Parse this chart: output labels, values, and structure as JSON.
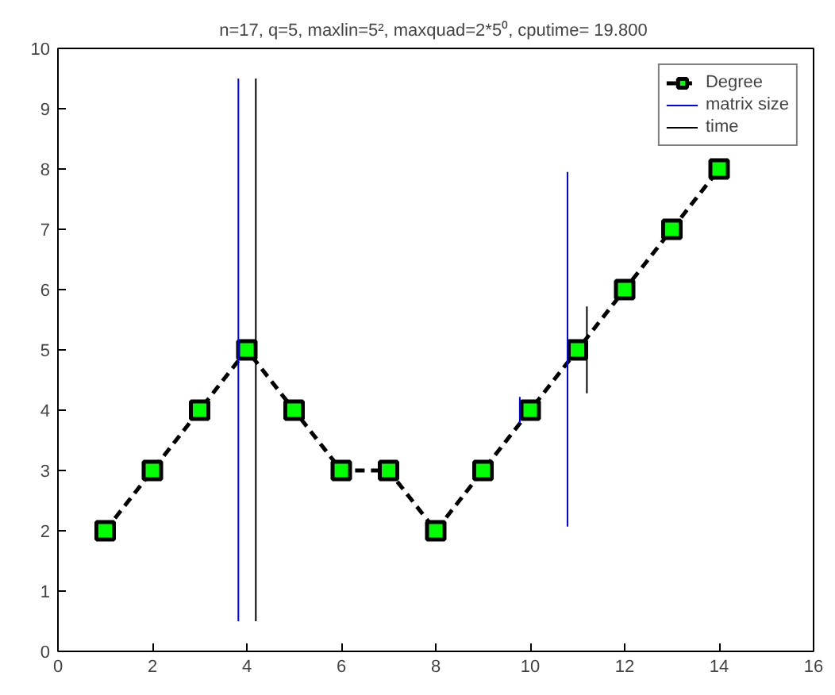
{
  "chart_data": {
    "type": "line",
    "title": "n=17, q=5, maxlin=5², maxquad=2*5⁰, cputime=  19.800",
    "x": [
      1,
      2,
      3,
      4,
      5,
      6,
      7,
      8,
      9,
      10,
      11,
      12,
      13,
      14
    ],
    "series": [
      {
        "name": "Degree",
        "color": "#000000",
        "values": [
          2,
          3,
          4,
          5,
          4,
          3,
          3,
          2,
          3,
          4,
          5,
          6,
          7,
          8
        ],
        "marker": "square",
        "line_style": "dashed"
      },
      {
        "name": "matrix size",
        "color": "#0000ff",
        "x": [
          3.82,
          3.82,
          null,
          9.78,
          9.78,
          null,
          10.79,
          10.79
        ],
        "values": [
          0.5,
          9.5,
          null,
          3.78,
          4.22,
          null,
          2.07,
          7.95
        ],
        "marker": "none",
        "line_style": "solid"
      },
      {
        "name": "time",
        "color": "#000000",
        "x": [
          4.19,
          4.19,
          null,
          11.2,
          11.2
        ],
        "values": [
          0.5,
          9.5,
          null,
          4.28,
          5.72
        ],
        "marker": "none",
        "line_style": "solid"
      }
    ],
    "xlim": [
      0,
      16
    ],
    "xticks": [
      0,
      2,
      4,
      6,
      8,
      10,
      12,
      14,
      16
    ],
    "ylim": [
      0,
      10
    ],
    "yticks": [
      0,
      1,
      2,
      3,
      4,
      5,
      6,
      7,
      8,
      9,
      10
    ],
    "grid": false,
    "legend": "top right"
  }
}
